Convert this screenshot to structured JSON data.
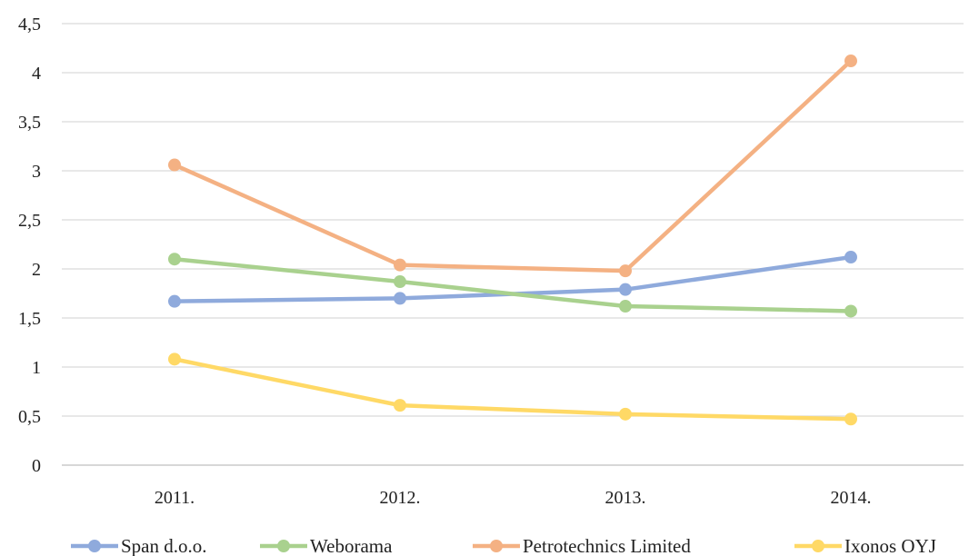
{
  "chart_data": {
    "type": "line",
    "title": "",
    "xlabel": "",
    "ylabel": "",
    "categories": [
      "2011.",
      "2012.",
      "2013.",
      "2014."
    ],
    "ylim": [
      0,
      4.5
    ],
    "yticks": [
      0,
      0.5,
      1,
      1.5,
      2,
      2.5,
      3,
      3.5,
      4,
      4.5
    ],
    "ytick_labels": [
      "0",
      "0,5",
      "1",
      "1,5",
      "2",
      "2,5",
      "3",
      "3,5",
      "4",
      "4,5"
    ],
    "grid": "horizontal",
    "legend_position": "bottom",
    "series": [
      {
        "name": "Span d.o.o.",
        "color": "#8faadc",
        "values": [
          1.67,
          1.7,
          1.79,
          2.12
        ]
      },
      {
        "name": "Weborama",
        "color": "#a9d18e",
        "values": [
          2.1,
          1.87,
          1.62,
          1.57
        ]
      },
      {
        "name": "Petrotechnics Limited",
        "color": "#f4b183",
        "values": [
          3.06,
          2.04,
          1.98,
          4.12
        ]
      },
      {
        "name": "Ixonos OYJ",
        "color": "#ffd966",
        "values": [
          1.08,
          0.61,
          0.52,
          0.47
        ]
      }
    ]
  }
}
